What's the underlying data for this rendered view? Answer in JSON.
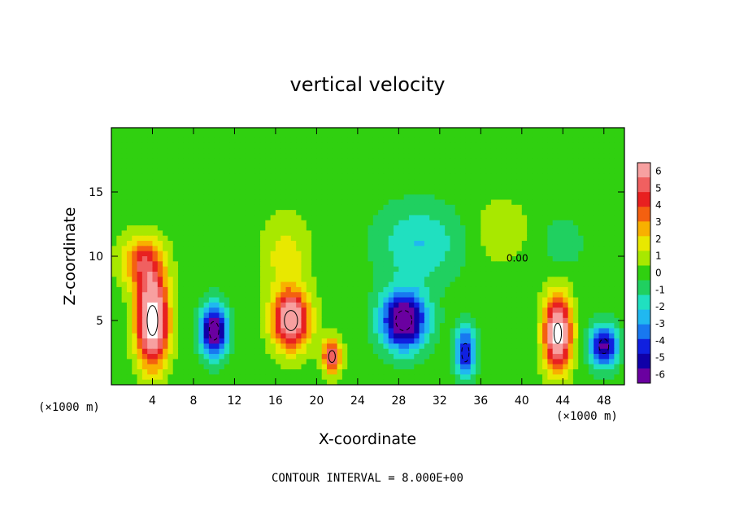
{
  "chart_data": {
    "type": "heatmap",
    "title": "vertical velocity",
    "xlabel": "X-coordinate",
    "ylabel": "Z-coordinate",
    "x_units": "(×1000 m)",
    "z_units": "(×1000 m)",
    "xlim": [
      0,
      50
    ],
    "ylim": [
      0,
      20
    ],
    "x_ticks": [
      4,
      8,
      12,
      16,
      20,
      24,
      28,
      32,
      36,
      40,
      44,
      48
    ],
    "y_ticks": [
      5,
      10,
      15
    ],
    "colorbar": {
      "levels": [
        6,
        5,
        4,
        3,
        2,
        1,
        0,
        -1,
        -2,
        -3,
        -4,
        -5,
        -6
      ],
      "colors": [
        "#f7a0a0",
        "#f06060",
        "#e82020",
        "#f46010",
        "#f8b000",
        "#e8e800",
        "#a8e800",
        "#30d010",
        "#20d060",
        "#20e0c0",
        "#20b8f0",
        "#1878f0",
        "#1020e0",
        "#1000a8",
        "#6a00a0"
      ]
    },
    "contour_label": "0.00",
    "annotation": "CONTOUR INTERVAL = 8.000E+00",
    "background_color": "#38d818",
    "blobs": [
      {
        "x": 4,
        "z": 5,
        "sx": 1.5,
        "sz": 3.4,
        "a": 9
      },
      {
        "x": 10,
        "z": 4.2,
        "sx": 1.3,
        "sz": 2.0,
        "a": -7
      },
      {
        "x": 17.5,
        "z": 5,
        "sx": 1.8,
        "sz": 2.2,
        "a": 7.5
      },
      {
        "x": 21.5,
        "z": 2.2,
        "sx": 0.9,
        "sz": 1.3,
        "a": 6
      },
      {
        "x": 28.5,
        "z": 5,
        "sx": 2.2,
        "sz": 2.2,
        "a": -7.5
      },
      {
        "x": 34.5,
        "z": 2.5,
        "sx": 1.0,
        "sz": 2.0,
        "a": -5
      },
      {
        "x": 43.5,
        "z": 4,
        "sx": 1.3,
        "sz": 2.8,
        "a": 8.5
      },
      {
        "x": 48,
        "z": 3,
        "sx": 1.3,
        "sz": 1.6,
        "a": -6
      },
      {
        "x": 3,
        "z": 9.5,
        "sx": 2.0,
        "sz": 2.0,
        "a": 4
      },
      {
        "x": 17,
        "z": 10,
        "sx": 2.2,
        "sz": 3.0,
        "a": 1.8
      },
      {
        "x": 30,
        "z": 11,
        "sx": 4.0,
        "sz": 3.0,
        "a": -2.2
      },
      {
        "x": 38,
        "z": 12,
        "sx": 2.5,
        "sz": 2.5,
        "a": 1.2
      },
      {
        "x": 44,
        "z": 11,
        "sx": 2.0,
        "sz": 2.0,
        "a": -1.0
      }
    ]
  }
}
